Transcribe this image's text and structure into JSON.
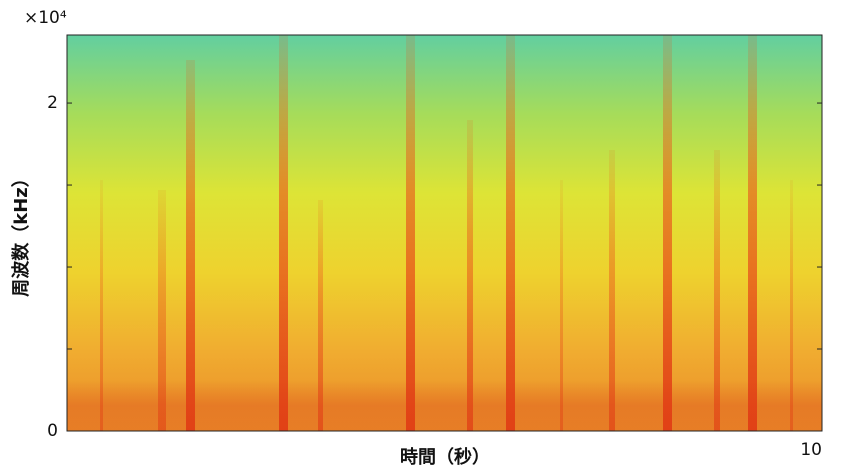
{
  "chart_data": {
    "type": "spectrogram",
    "xlabel": "時間（秒）",
    "ylabel": "周波数（kHz）",
    "y_offset_label": "×10⁴",
    "xlim": [
      0,
      10
    ],
    "xticks": [
      10
    ],
    "ylim": [
      0,
      24150
    ],
    "yticks": [
      0,
      {
        "value": 20000,
        "label": "2"
      }
    ],
    "yminor": [
      5000,
      10000,
      15000
    ]
  }
}
